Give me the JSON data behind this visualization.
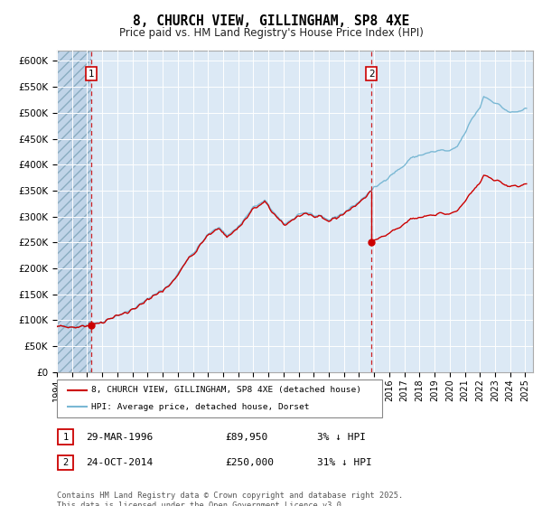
{
  "title": "8, CHURCH VIEW, GILLINGHAM, SP8 4XE",
  "subtitle": "Price paid vs. HM Land Registry's House Price Index (HPI)",
  "ylim": [
    0,
    620000
  ],
  "yticks": [
    0,
    50000,
    100000,
    150000,
    200000,
    250000,
    300000,
    350000,
    400000,
    450000,
    500000,
    550000,
    600000
  ],
  "xlim_start": 1994.0,
  "xlim_end": 2025.5,
  "bg_color": "#dce9f5",
  "sale1_x": 1996.25,
  "sale1_price": 89950,
  "sale2_x": 2014.83,
  "sale2_price": 250000,
  "red_color": "#cc0000",
  "hpi_color": "#7ab8d4",
  "legend_line1": "8, CHURCH VIEW, GILLINGHAM, SP8 4XE (detached house)",
  "legend_line2": "HPI: Average price, detached house, Dorset",
  "table_row1": [
    "1",
    "29-MAR-1996",
    "£89,950",
    "3% ↓ HPI"
  ],
  "table_row2": [
    "2",
    "24-OCT-2014",
    "£250,000",
    "31% ↓ HPI"
  ],
  "footer": "Contains HM Land Registry data © Crown copyright and database right 2025.\nThis data is licensed under the Open Government Licence v3.0."
}
